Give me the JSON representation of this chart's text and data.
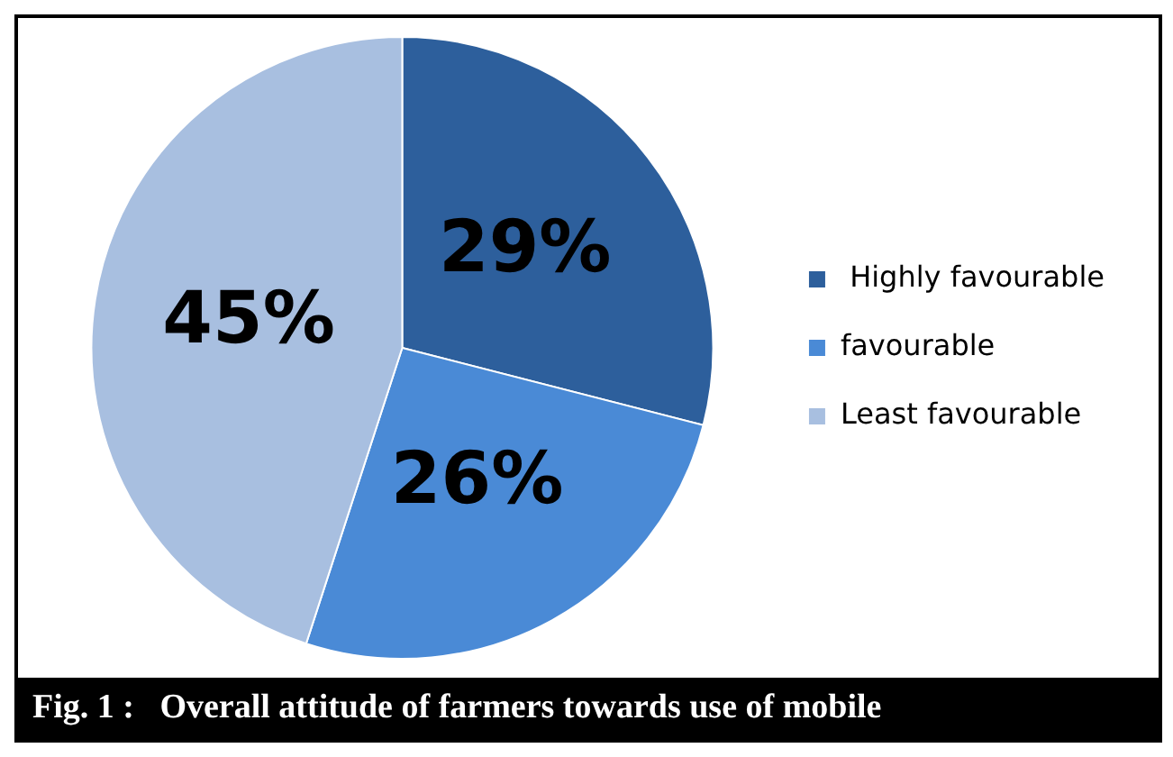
{
  "chart_data": {
    "type": "pie",
    "categories": [
      " Highly favourable",
      "favourable",
      "Least favourable"
    ],
    "values": [
      29,
      26,
      45
    ],
    "colors": [
      "#2d5f9c",
      "#4a8ad6",
      "#a8bfe0"
    ],
    "value_labels": [
      "29%",
      "26%",
      "45%"
    ],
    "legend": "right",
    "annotations": [
      "Fig. 1 :   Overall attitude of farmers towards use of mobile"
    ]
  }
}
